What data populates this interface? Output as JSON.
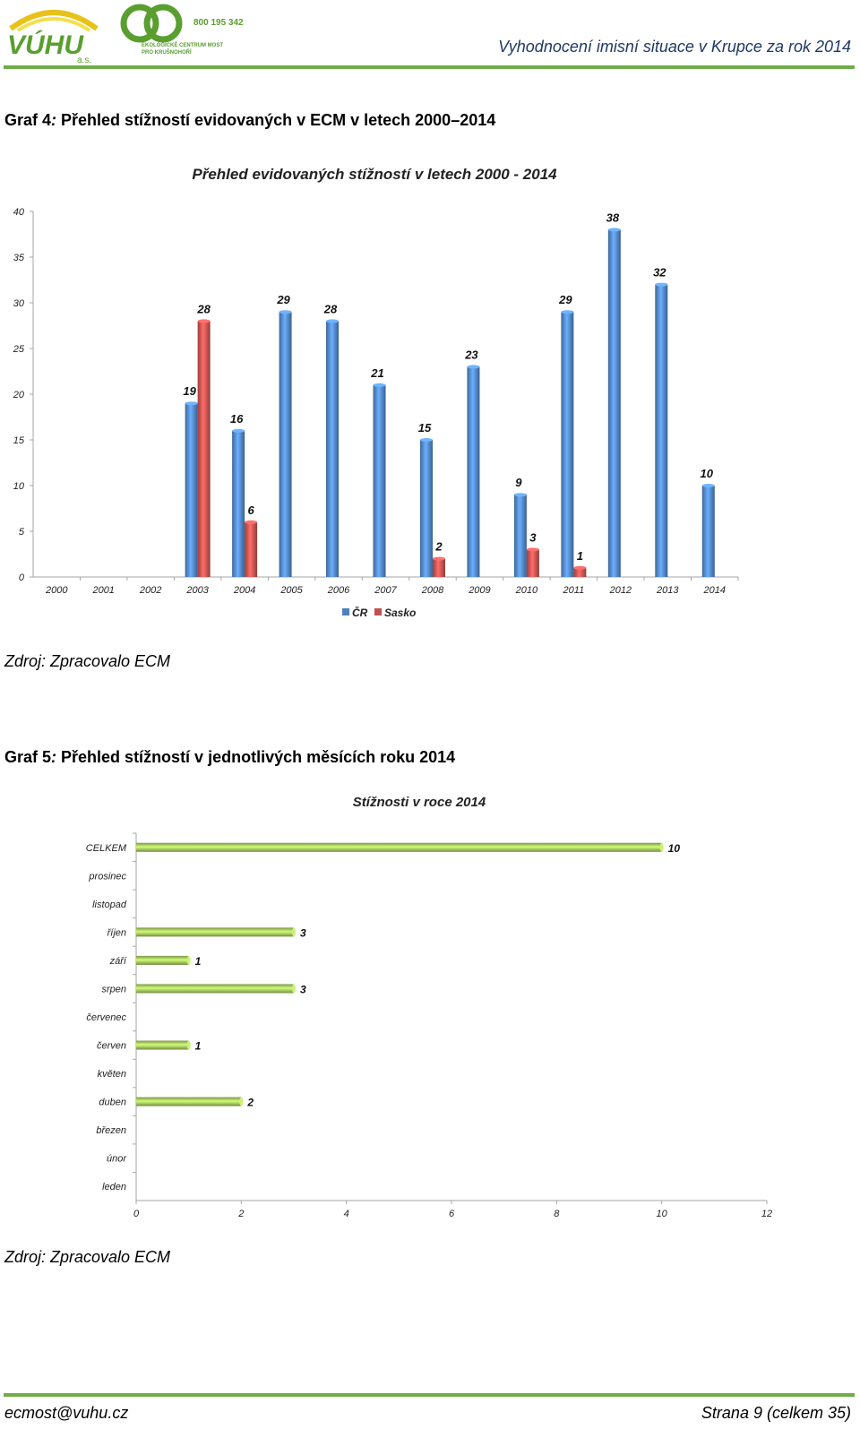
{
  "header": {
    "logo_left_text": "VÚHU",
    "logo_left_sub": "a.s.",
    "logo_right_phone": "800 195 342",
    "logo_right_line1": "EKOLOGICKÉ CENTRUM MOST",
    "logo_right_line2": "PRO KRUŠNOHOŘÍ",
    "title": "Vyhodnocení imisní situace v Krupce za rok 2014",
    "accent_color": "#70ad47"
  },
  "graf4": {
    "heading_prefix": "Graf 4",
    "heading_sep": ":",
    "heading_text": " Přehled stížností evidovaných v ECM v letech 2000–2014",
    "source": "Zdroj: Zpracovalo ECM"
  },
  "graf5": {
    "heading_prefix": "Graf 5",
    "heading_sep": ":",
    "heading_text": " Přehled stížností v jednotlivých měsících roku 2014",
    "source": "Zdroj: Zpracovalo ECM"
  },
  "footer": {
    "email": "ecmost@vuhu.cz",
    "page": "Strana 9 (celkem 35)"
  },
  "chart_data": [
    {
      "type": "bar",
      "title": "Přehled evidovaných stížností v letech 2000 - 2014",
      "categories": [
        "2000",
        "2001",
        "2002",
        "2003",
        "2004",
        "2005",
        "2006",
        "2007",
        "2008",
        "2009",
        "2010",
        "2011",
        "2012",
        "2013",
        "2014"
      ],
      "series": [
        {
          "name": "ČR",
          "color": "#4f81bd",
          "values": [
            null,
            null,
            null,
            19,
            16,
            29,
            28,
            21,
            15,
            23,
            9,
            29,
            38,
            32,
            10
          ]
        },
        {
          "name": "Sasko",
          "color": "#c0504d",
          "values": [
            null,
            null,
            null,
            28,
            6,
            null,
            null,
            null,
            2,
            null,
            3,
            1,
            null,
            null,
            null
          ]
        }
      ],
      "ylim": [
        0,
        40
      ],
      "yticks": [
        0,
        5,
        10,
        15,
        20,
        25,
        30,
        35,
        40
      ],
      "legend": "bottom",
      "grid": false
    },
    {
      "type": "bar",
      "orientation": "horizontal",
      "title": "Stížnosti v roce 2014",
      "categories": [
        "CELKEM",
        "prosinec",
        "listopad",
        "říjen",
        "září",
        "srpen",
        "červenec",
        "červen",
        "květen",
        "duben",
        "březen",
        "únor",
        "leden"
      ],
      "series": [
        {
          "color": "#9bbb59",
          "values": [
            10,
            null,
            null,
            3,
            1,
            3,
            null,
            1,
            null,
            2,
            null,
            null,
            null
          ]
        }
      ],
      "xlim": [
        0,
        12
      ],
      "xticks": [
        0,
        2,
        4,
        6,
        8,
        10,
        12
      ],
      "grid": false
    }
  ]
}
